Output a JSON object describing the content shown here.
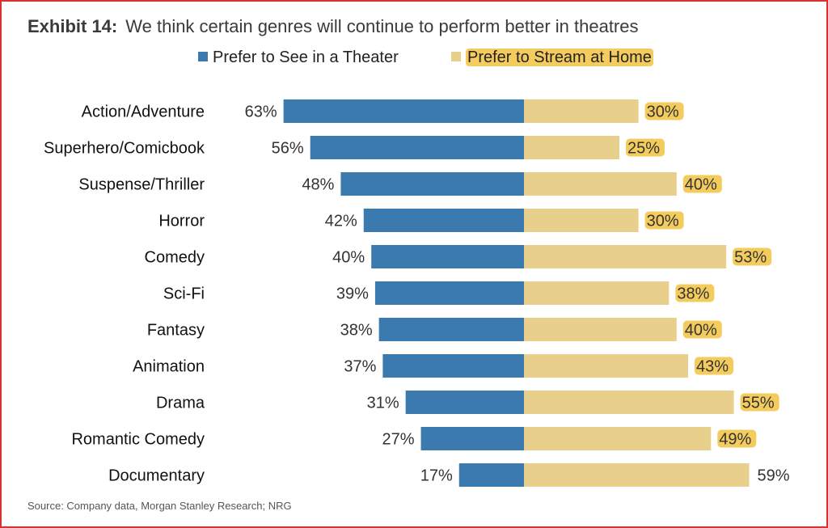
{
  "header": {
    "label": "Exhibit 14:",
    "title": "We think certain genres will continue to perform better in theatres"
  },
  "legend": {
    "theater_label": "Prefer to See in a Theater",
    "home_label": "Prefer to Stream at Home"
  },
  "colors": {
    "theater": "#3b7aae",
    "home": "#e8cf8c",
    "highlight": "#f4cc5d",
    "border": "#d9312b"
  },
  "source": "Source: Company data, Morgan Stanley Research; NRG",
  "chart_data": {
    "type": "bar",
    "orientation": "horizontal-diverging",
    "categories": [
      "Action/Adventure",
      "Superhero/Comicbook",
      "Suspense/Thriller",
      "Horror",
      "Comedy",
      "Sci-Fi",
      "Fantasy",
      "Animation",
      "Drama",
      "Romantic Comedy",
      "Documentary"
    ],
    "series": [
      {
        "name": "Prefer to See in a Theater",
        "values": [
          63,
          56,
          48,
          42,
          40,
          39,
          38,
          37,
          31,
          27,
          17
        ],
        "labels": [
          "63%",
          "56%",
          "48%",
          "42%",
          "40%",
          "39%",
          "38%",
          "37%",
          "31%",
          "27%",
          "17%"
        ]
      },
      {
        "name": "Prefer to Stream at Home",
        "values": [
          30,
          25,
          40,
          30,
          53,
          38,
          40,
          43,
          55,
          49,
          59
        ],
        "labels": [
          "30%",
          "25%",
          "40%",
          "30%",
          "53%",
          "38%",
          "40%",
          "43%",
          "55%",
          "49%",
          "59%"
        ]
      }
    ],
    "highlighted_labels": [
      true,
      true,
      true,
      true,
      true,
      true,
      true,
      true,
      true,
      true,
      false
    ],
    "title": "We think certain genres will continue to perform better in theatres",
    "xlim": [
      -63,
      59
    ],
    "grid": false,
    "legend_position": "top-center"
  }
}
